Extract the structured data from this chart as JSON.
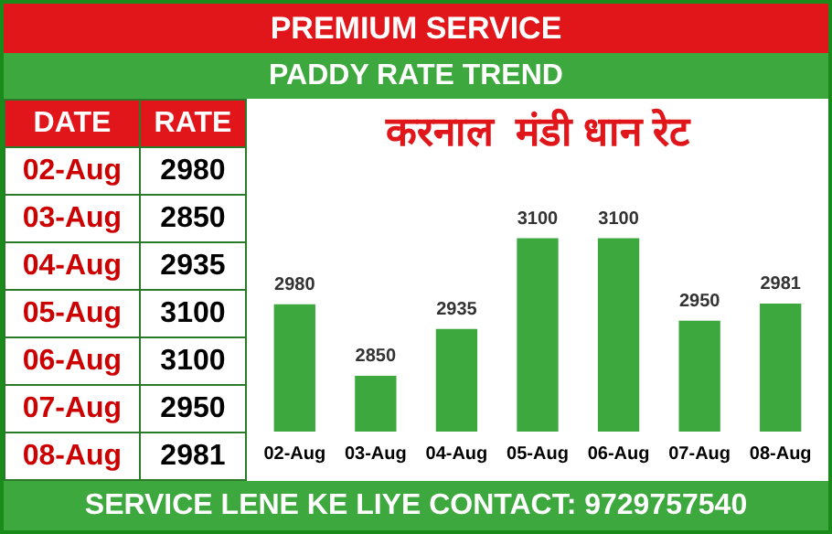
{
  "chart_data": [
    {
      "type": "other",
      "annotations": [
        "DATE",
        "RATE"
      ],
      "categories": [
        "02-Aug",
        "03-Aug",
        "04-Aug",
        "05-Aug",
        "06-Aug",
        "07-Aug",
        "08-Aug"
      ],
      "value_labels": [
        "2980",
        "2850",
        "2935",
        "3100",
        "3100",
        "2950",
        "2981"
      ]
    },
    {
      "type": "bar",
      "title": "करनाल  मंडी धान रेट",
      "subtitle": "PADDY RATE TREND",
      "categories": [
        "02-Aug",
        "03-Aug",
        "04-Aug",
        "05-Aug",
        "06-Aug",
        "07-Aug",
        "08-Aug"
      ],
      "values": [
        2980,
        2850,
        2935,
        3100,
        3100,
        2950,
        2981
      ],
      "color": "#3da83d",
      "tick_labels": "x",
      "data_labels": true,
      "annotations": [
        "PREMIUM SERVICE",
        "SERVICE LENE KE LIYE CONTACT: 9729757540"
      ]
    }
  ]
}
